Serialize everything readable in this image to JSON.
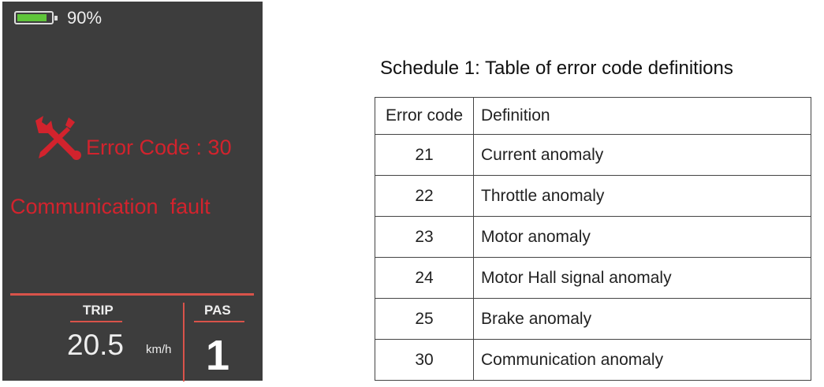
{
  "display": {
    "battery_percent": 90,
    "battery_label": "90%",
    "error_text": "Error Code : 30",
    "fault_text": "Communication  fault",
    "trip_label": "TRIP",
    "trip_value": "20.5",
    "speed_unit": "km/h",
    "pas_label": "PAS",
    "pas_value": "1",
    "colors": {
      "background": "#3d3d3d",
      "error": "#d2232d",
      "battery": "#5fc53a",
      "divider": "#d9534a"
    }
  },
  "schedule": {
    "title": "Schedule 1: Table of error code definitions",
    "headers": [
      "Error code",
      "Definition"
    ],
    "rows": [
      [
        "21",
        "Current anomaly"
      ],
      [
        "22",
        "Throttle anomaly"
      ],
      [
        "23",
        "Motor anomaly"
      ],
      [
        "24",
        "Motor Hall signal anomaly"
      ],
      [
        "25",
        "Brake anomaly"
      ],
      [
        "30",
        "Communication anomaly"
      ]
    ]
  }
}
